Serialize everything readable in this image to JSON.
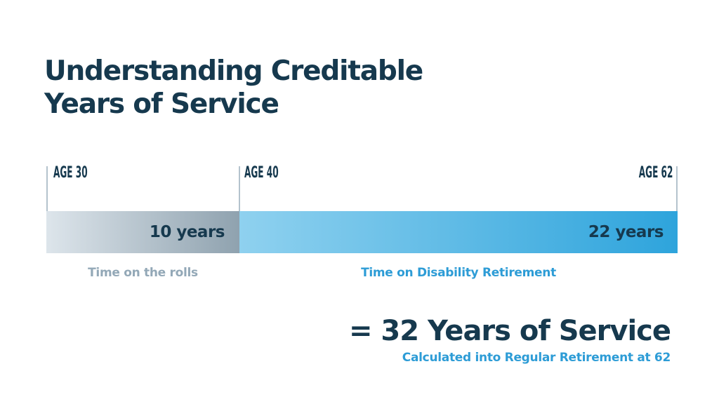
{
  "slide_title": {
    "line1": "Understanding Creditable",
    "line2": "Years of Service"
  },
  "timeline": {
    "markers": [
      {
        "label": "AGE 30"
      },
      {
        "label": "AGE 40"
      },
      {
        "label": "AGE 62"
      }
    ],
    "segments": [
      {
        "label": "10 years",
        "caption": "Time on the rolls"
      },
      {
        "label": "22 years",
        "caption": "Time on Disability Retirement"
      }
    ]
  },
  "summary": {
    "total": "= 32 Years of Service",
    "subtitle": "Calculated into Regular Retirement at 62"
  },
  "colors": {
    "background": "#ffffff",
    "navy": "#16394e",
    "accent_blue": "#2d9cd6",
    "caption_gray": "#93a8b7",
    "gray_bar_start": "#dde5eb",
    "gray_bar_end": "#8fa2af",
    "blue_bar_start": "#8fd1ef",
    "blue_bar_end": "#2ea4dc",
    "tick_line": "#b4c3cd"
  },
  "chart_data": {
    "type": "bar",
    "orientation": "horizontal",
    "title": "Understanding Creditable Years of Service",
    "axis": {
      "unit": "age",
      "markers": [
        30,
        40,
        62
      ],
      "marker_labels": [
        "AGE 30",
        "AGE 40",
        "AGE 62"
      ],
      "range": [
        30,
        62
      ]
    },
    "series": [
      {
        "name": "Time on the rolls",
        "value_years": 10,
        "age_start": 30,
        "age_end": 40,
        "bar_label": "10 years",
        "color_gradient": [
          "#dde5eb",
          "#8fa2af"
        ]
      },
      {
        "name": "Time on Disability Retirement",
        "value_years": 22,
        "age_start": 40,
        "age_end": 62,
        "bar_label": "22 years",
        "color_gradient": [
          "#8fd1ef",
          "#2ea4dc"
        ]
      }
    ],
    "total": {
      "value_years": 32,
      "label": "= 32 Years of Service",
      "note": "Calculated into Regular Retirement at 62"
    },
    "legend_position": "below-bar",
    "grid": false
  }
}
